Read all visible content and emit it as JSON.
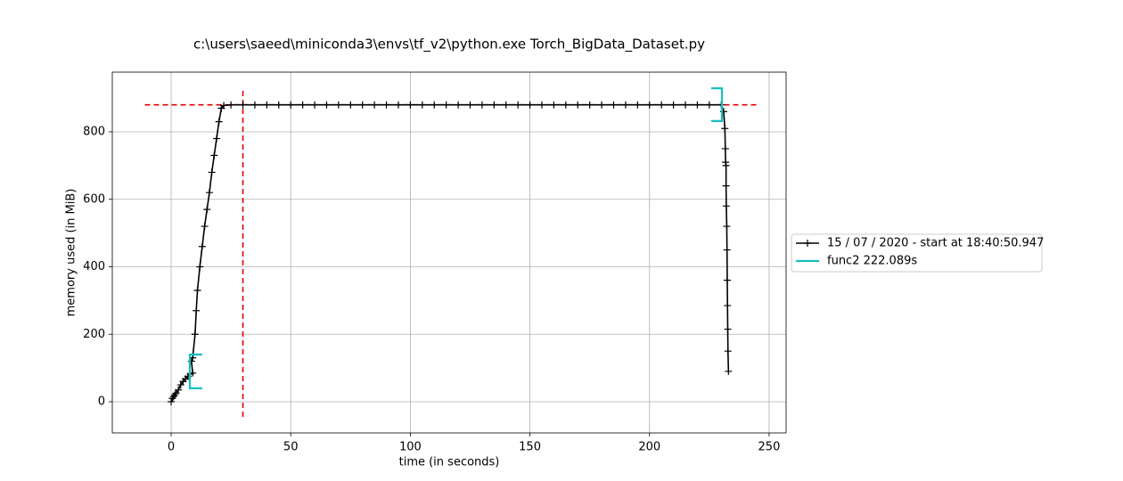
{
  "chart_data": {
    "type": "line",
    "title": "c:\\users\\saeed\\miniconda3\\envs\\tf_v2\\python.exe Torch_BigData_Dataset.py",
    "x_label": "time (in seconds)",
    "y_label": "memory used (in MiB)",
    "xlim": [
      -24.6,
      257.1
    ],
    "ylim": [
      -92.4,
      976.9
    ],
    "xticks": [
      0,
      50,
      100,
      150,
      200,
      250
    ],
    "yticks": [
      0,
      200,
      400,
      600,
      800
    ],
    "grid": true,
    "legend": "right",
    "series": [
      {
        "name": "15 / 07 / 2020 - start at 18:40:50.947",
        "color": "#000000",
        "x": [
          0,
          0.5,
          1,
          1.5,
          2,
          3,
          4,
          5,
          6,
          7,
          8,
          9,
          8.5,
          9,
          10,
          10.5,
          11,
          12,
          13,
          14,
          15,
          16,
          17,
          18,
          19,
          20,
          21,
          22,
          25,
          30,
          35,
          40,
          45,
          50,
          55,
          60,
          65,
          70,
          75,
          80,
          85,
          90,
          95,
          100,
          105,
          110,
          115,
          120,
          125,
          130,
          135,
          140,
          145,
          150,
          155,
          160,
          165,
          170,
          175,
          180,
          185,
          190,
          195,
          200,
          205,
          210,
          215,
          220,
          225,
          230,
          231,
          231.5,
          231.7,
          231.8,
          232,
          232,
          232.1,
          232.3,
          232.4,
          232.5,
          232.6,
          232.7,
          232.8,
          233
        ],
        "values": [
          0,
          10,
          15,
          20,
          25,
          35,
          50,
          60,
          68,
          75,
          82,
          85,
          120,
          130,
          200,
          270,
          330,
          400,
          460,
          520,
          570,
          620,
          680,
          730,
          780,
          830,
          870,
          878,
          880,
          880,
          880,
          880,
          880,
          880,
          880,
          880,
          880,
          880,
          880,
          880,
          880,
          880,
          880,
          880,
          880,
          880,
          880,
          880,
          880,
          880,
          880,
          880,
          880,
          880,
          880,
          880,
          880,
          880,
          880,
          880,
          880,
          880,
          880,
          880,
          880,
          880,
          880,
          880,
          880,
          880,
          860,
          810,
          750,
          710,
          700,
          640,
          580,
          520,
          450,
          360,
          285,
          215,
          150,
          90
        ]
      },
      {
        "name": "func2 222.089s",
        "color": "#17bfbf",
        "brackets": [
          {
            "x": 7.8,
            "tip": 13,
            "ymin": 40,
            "ymax": 140
          },
          {
            "x": 230.3,
            "tip": 225.8,
            "ymin": 832,
            "ymax": 929
          }
        ]
      }
    ],
    "reference_lines": [
      {
        "orientation": "horizontal",
        "color": "#e00000",
        "y": 880,
        "x": [
          -11,
          245
        ]
      },
      {
        "orientation": "vertical",
        "color": "#e00000",
        "x": 30,
        "y": [
          -45,
          925
        ]
      }
    ]
  }
}
